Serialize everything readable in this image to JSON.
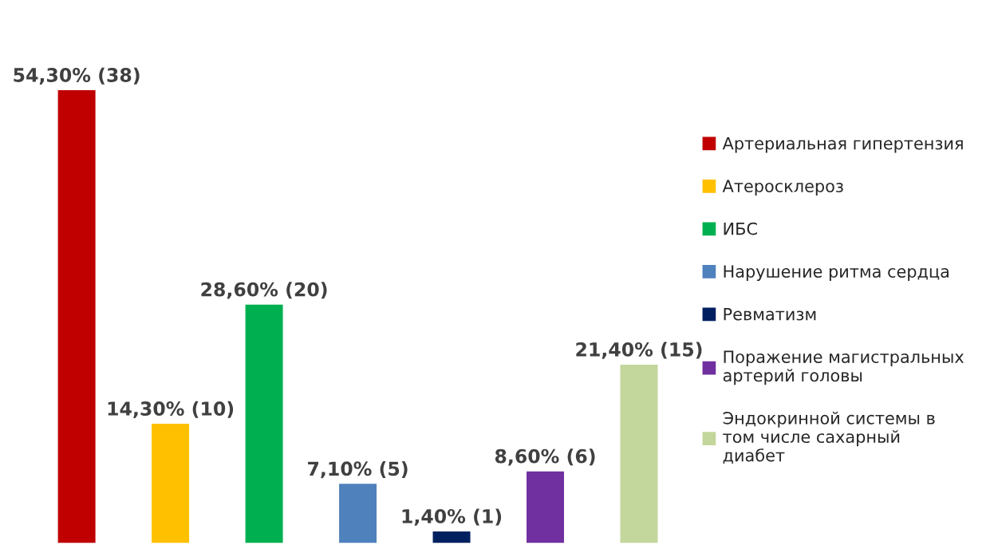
{
  "chart_data": {
    "type": "bar",
    "stacked": true,
    "categories": [
      null,
      null,
      null,
      null,
      null,
      null,
      null
    ],
    "series": [
      {
        "name": "Артериальная гипертензия",
        "color": "#c00000",
        "values": [
          54.3,
          null,
          null,
          null,
          null,
          null,
          null
        ],
        "value_labels": [
          "54,30% (38)",
          null,
          null,
          null,
          null,
          null,
          null
        ]
      },
      {
        "name": "Атеросклероз",
        "color": "#ffc000",
        "values": [
          null,
          14.3,
          null,
          null,
          null,
          null,
          null
        ],
        "value_labels": [
          null,
          "14,30% (10)",
          null,
          null,
          null,
          null,
          null
        ]
      },
      {
        "name": "ИБС",
        "color": "#00b050",
        "values": [
          null,
          null,
          28.6,
          null,
          null,
          null,
          null
        ],
        "value_labels": [
          null,
          null,
          "28,60% (20)",
          null,
          null,
          null,
          null
        ]
      },
      {
        "name": "Нарушение ритма сердца",
        "color": "#4f81bd",
        "values": [
          null,
          null,
          null,
          7.1,
          null,
          null,
          null
        ],
        "value_labels": [
          null,
          null,
          null,
          "7,10% (5)",
          null,
          null,
          null
        ]
      },
      {
        "name": "Ревматизм",
        "color": "#002060",
        "values": [
          null,
          null,
          null,
          null,
          1.4,
          null,
          null
        ],
        "value_labels": [
          null,
          null,
          null,
          null,
          "1,40% (1)",
          null,
          null
        ]
      },
      {
        "name": "Поражение магистральных артерий головы",
        "color": "#7030a0",
        "values": [
          null,
          null,
          null,
          null,
          null,
          8.6,
          null
        ],
        "value_labels": [
          null,
          null,
          null,
          null,
          null,
          "8,60% (6)",
          null
        ]
      },
      {
        "name": "Эндокринной системы в том числе сахарный диабет",
        "color": "#c3d69b",
        "values": [
          null,
          null,
          null,
          null,
          null,
          null,
          21.4
        ],
        "value_labels": [
          null,
          null,
          null,
          null,
          null,
          null,
          "21,40% (15)"
        ]
      }
    ],
    "legend": "right",
    "marker": "square"
  }
}
